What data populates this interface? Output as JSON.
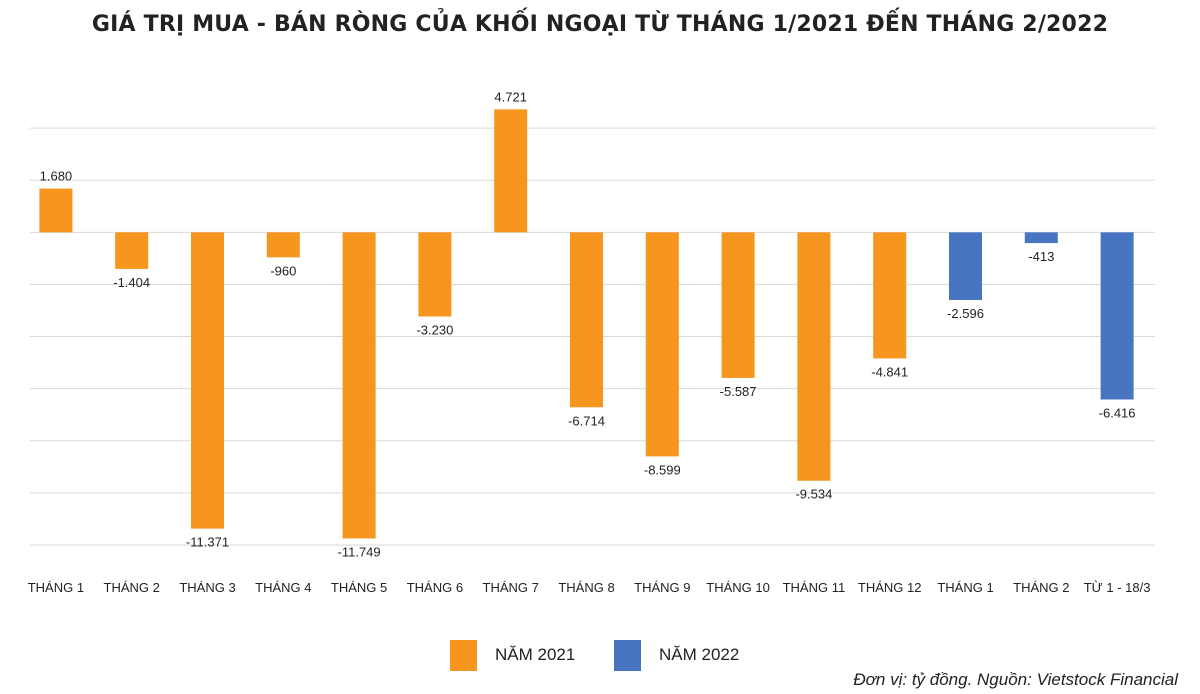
{
  "title": "GIÁ TRỊ MUA - BÁN RÒNG CỦA KHỐI NGOẠI TỪ THÁNG 1/2021 ĐẾN THÁNG 2/2022",
  "source_note": "Đơn vị: tỷ đồng. Nguồn:  Vietstock Financial",
  "colors": {
    "y2021": "#F7961E",
    "y2022": "#4775C1",
    "grid": "#D9D9D9"
  },
  "legend": [
    {
      "label": "NĂM 2021",
      "color": "#F7961E"
    },
    {
      "label": "NĂM 2022",
      "color": "#4775C1"
    }
  ],
  "chart_data": {
    "type": "bar",
    "categories": [
      "THÁNG 1",
      "THÁNG 2",
      "THÁNG 3",
      "THÁNG 4",
      "THÁNG 5",
      "THÁNG 6",
      "THÁNG 7",
      "THÁNG 8",
      "THÁNG 9",
      "THÁNG 10",
      "THÁNG 11",
      "THÁNG 12",
      "THÁNG 1",
      "THÁNG 2",
      "TỪ 1 - 18/3"
    ],
    "values": [
      1680,
      -1404,
      -11371,
      -960,
      -11749,
      -3230,
      4721,
      -6714,
      -8599,
      -5587,
      -9534,
      -4841,
      -2596,
      -413,
      -6416
    ],
    "value_labels": [
      "1.680",
      "-1.404",
      "-11.371",
      "-960",
      "-11.749",
      "-3.230",
      "4.721",
      "-6.714",
      "-8.599",
      "-5.587",
      "-9.534",
      "-4.841",
      "-2.596",
      "-413",
      "-6.416"
    ],
    "year_group": [
      "NĂM 2021",
      "NĂM 2021",
      "NĂM 2021",
      "NĂM 2021",
      "NĂM 2021",
      "NĂM 2021",
      "NĂM 2021",
      "NĂM 2021",
      "NĂM 2021",
      "NĂM 2021",
      "NĂM 2021",
      "NĂM 2021",
      "NĂM 2022",
      "NĂM 2022",
      "NĂM 2022"
    ],
    "ylim": [
      -12000,
      6000
    ],
    "grid_step": 2000,
    "grid": true,
    "legend_position": "bottom-center"
  }
}
